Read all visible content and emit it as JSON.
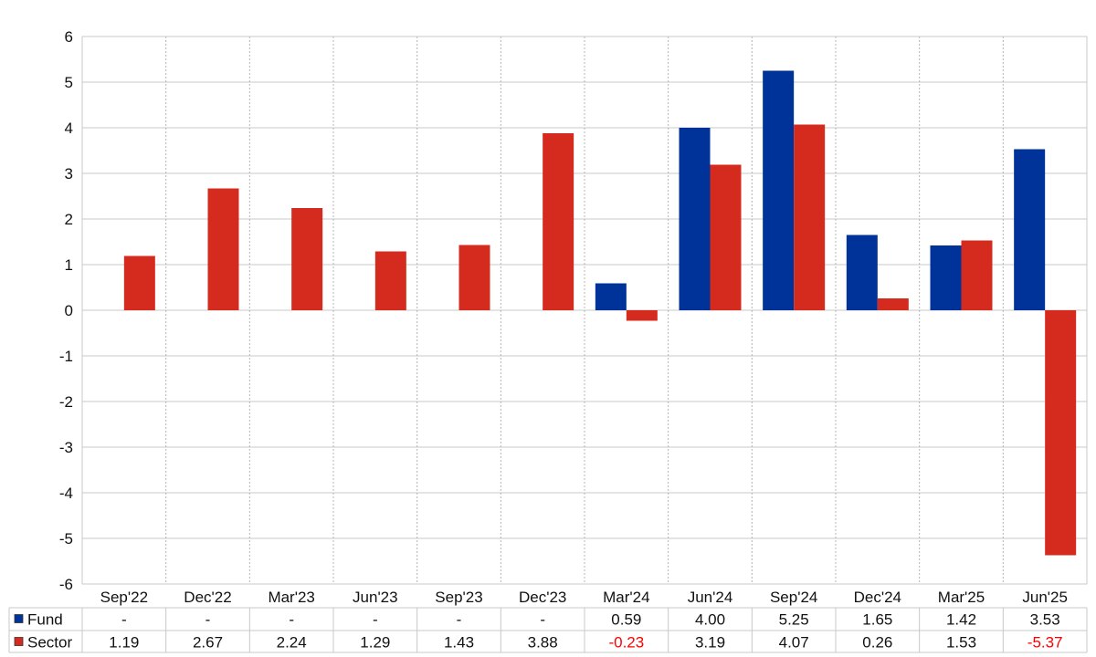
{
  "chart_data": {
    "type": "bar",
    "categories": [
      "Sep'22",
      "Dec'22",
      "Mar'23",
      "Jun'23",
      "Sep'23",
      "Dec'23",
      "Mar'24",
      "Jun'24",
      "Sep'24",
      "Dec'24",
      "Mar'25",
      "Jun'25"
    ],
    "series": [
      {
        "name": "Fund",
        "color": "#003399",
        "values": [
          null,
          null,
          null,
          null,
          null,
          null,
          0.59,
          4.0,
          5.25,
          1.65,
          1.42,
          3.53
        ]
      },
      {
        "name": "Sector",
        "color": "#d52b1e",
        "values": [
          1.19,
          2.67,
          2.24,
          1.29,
          1.43,
          3.88,
          -0.23,
          3.19,
          4.07,
          0.26,
          1.53,
          -5.37
        ]
      }
    ],
    "table": {
      "rows": [
        {
          "label": "Fund",
          "cells": [
            "-",
            "-",
            "-",
            "-",
            "-",
            "-",
            "0.59",
            "4.00",
            "5.25",
            "1.65",
            "1.42",
            "3.53"
          ]
        },
        {
          "label": "Sector",
          "cells": [
            "1.19",
            "2.67",
            "2.24",
            "1.29",
            "1.43",
            "3.88",
            "-0.23",
            "3.19",
            "4.07",
            "0.26",
            "1.53",
            "-5.37"
          ]
        }
      ]
    },
    "ylim": [
      -6,
      6
    ],
    "yticks": [
      "6",
      "5",
      "4",
      "3",
      "2",
      "1",
      "0",
      "-1",
      "-2",
      "-3",
      "-4",
      "-5",
      "-6"
    ],
    "grid": true,
    "legend": "table-bottom",
    "negative_value_color": "#ff0000"
  }
}
